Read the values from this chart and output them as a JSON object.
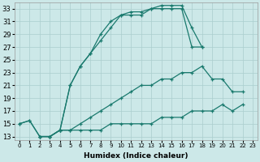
{
  "xlabel": "Humidex (Indice chaleur)",
  "background_color": "#cce8e8",
  "grid_color": "#aacece",
  "line_color": "#1a7a6e",
  "xlim": [
    -0.5,
    23.5
  ],
  "ylim": [
    12.5,
    34
  ],
  "xticks": [
    0,
    1,
    2,
    3,
    4,
    5,
    6,
    7,
    8,
    9,
    10,
    11,
    12,
    13,
    14,
    15,
    16,
    17,
    18,
    19,
    20,
    21,
    22,
    23
  ],
  "yticks": [
    13,
    15,
    17,
    19,
    21,
    23,
    25,
    27,
    29,
    31,
    33
  ],
  "s1x": [
    0,
    1,
    2,
    3,
    4,
    5,
    6,
    7,
    8,
    9,
    10,
    11,
    12,
    13,
    14,
    15,
    16,
    17,
    18
  ],
  "s1y": [
    15,
    15.5,
    13,
    13,
    14,
    21,
    24,
    26,
    29,
    31,
    32,
    32.5,
    32.5,
    33,
    33.5,
    33.5,
    33.5,
    30,
    27
  ],
  "s2x": [
    0,
    1,
    2,
    3,
    4,
    5,
    6,
    7,
    8,
    9,
    10,
    11,
    12,
    13,
    14,
    15,
    16,
    17,
    18
  ],
  "s2y": [
    15,
    15.5,
    13,
    13,
    14,
    21,
    24,
    26,
    28,
    30,
    32,
    32,
    32,
    33,
    33,
    33,
    33,
    27,
    27
  ],
  "s3x": [
    2,
    3,
    4,
    5,
    6,
    7,
    8,
    9,
    10,
    11,
    12,
    13,
    14,
    15,
    16,
    17,
    18,
    19,
    20,
    21,
    22
  ],
  "s3y": [
    13,
    13,
    14,
    14,
    15,
    16,
    17,
    18,
    19,
    20,
    21,
    21,
    22,
    22,
    23,
    23,
    24,
    22,
    22,
    20,
    20
  ],
  "s4x": [
    2,
    3,
    4,
    5,
    6,
    7,
    8,
    9,
    10,
    11,
    12,
    13,
    14,
    15,
    16,
    17,
    18,
    19,
    20,
    21,
    22
  ],
  "s4y": [
    13,
    13,
    14,
    14,
    14,
    14,
    14,
    15,
    15,
    15,
    15,
    15,
    16,
    16,
    16,
    17,
    17,
    17,
    18,
    17,
    18
  ]
}
